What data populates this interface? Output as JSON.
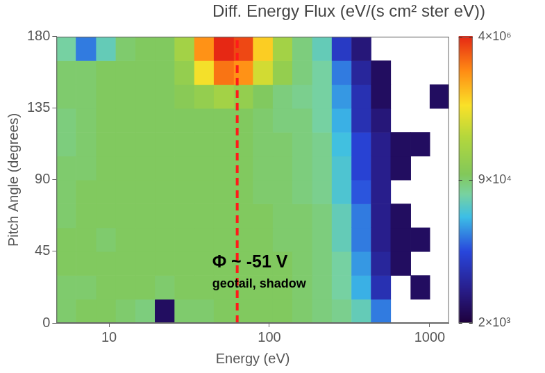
{
  "chart_data": {
    "type": "heatmap",
    "title": "Diff. Energy Flux (eV/(s cm² ster eV))",
    "x_label": "Energy (eV)",
    "y_label": "Pitch Angle (degrees)",
    "log": "x",
    "grid": false,
    "xlim": [
      4.7,
      1320
    ],
    "xticks": [
      10,
      100,
      1000
    ],
    "ylim": [
      0,
      180
    ],
    "yticks": [
      0,
      45,
      90,
      135,
      180
    ],
    "x_edges": [
      4.7,
      6.2,
      8.3,
      11,
      14.6,
      19.3,
      25.6,
      34,
      45,
      60,
      79,
      105,
      139,
      185,
      245,
      325,
      430,
      570,
      760,
      1000,
      1320
    ],
    "y_edges": [
      0,
      15,
      30,
      45,
      60,
      75,
      90,
      105,
      120,
      135,
      150,
      165,
      180
    ],
    "cells": [
      [
        90000,
        100000,
        100000,
        90000,
        80000,
        3000,
        90000,
        90000,
        100000,
        100000,
        100000,
        100000,
        90000,
        80000,
        70000,
        50000,
        20000,
        null,
        null,
        null
      ],
      [
        90000,
        90000,
        100000,
        100000,
        100000,
        90000,
        100000,
        100000,
        100000,
        100000,
        100000,
        100000,
        90000,
        80000,
        60000,
        30000,
        8000,
        null,
        3000,
        null
      ],
      [
        100000,
        100000,
        100000,
        100000,
        100000,
        100000,
        100000,
        100000,
        100000,
        100000,
        100000,
        100000,
        90000,
        80000,
        60000,
        25000,
        6000,
        3000,
        null,
        null
      ],
      [
        100000,
        100000,
        90000,
        100000,
        100000,
        100000,
        100000,
        100000,
        100000,
        100000,
        100000,
        90000,
        90000,
        80000,
        50000,
        20000,
        5000,
        3000,
        3000,
        null
      ],
      [
        90000,
        100000,
        100000,
        100000,
        100000,
        100000,
        100000,
        100000,
        100000,
        100000,
        100000,
        90000,
        90000,
        80000,
        50000,
        20000,
        5000,
        3000,
        null,
        null
      ],
      [
        90000,
        100000,
        100000,
        100000,
        100000,
        100000,
        100000,
        100000,
        100000,
        100000,
        90000,
        90000,
        80000,
        70000,
        40000,
        15000,
        5000,
        null,
        null,
        null
      ],
      [
        90000,
        90000,
        100000,
        100000,
        100000,
        100000,
        100000,
        100000,
        100000,
        100000,
        90000,
        90000,
        80000,
        70000,
        40000,
        12000,
        5000,
        3000,
        null,
        null
      ],
      [
        80000,
        90000,
        100000,
        100000,
        100000,
        100000,
        100000,
        100000,
        100000,
        100000,
        90000,
        90000,
        80000,
        70000,
        35000,
        12000,
        5000,
        3000,
        3000,
        null
      ],
      [
        80000,
        90000,
        100000,
        100000,
        100000,
        100000,
        100000,
        100000,
        100000,
        100000,
        90000,
        80000,
        80000,
        60000,
        30000,
        8000,
        4000,
        null,
        null,
        null
      ],
      [
        90000,
        90000,
        100000,
        100000,
        100000,
        100000,
        120000,
        150000,
        200000,
        150000,
        100000,
        80000,
        70000,
        60000,
        25000,
        8000,
        3000,
        null,
        null,
        3000
      ],
      [
        90000,
        90000,
        100000,
        100000,
        100000,
        100000,
        150000,
        600000,
        2000000,
        1500000,
        400000,
        150000,
        80000,
        60000,
        20000,
        6000,
        3000,
        null,
        null,
        null
      ],
      [
        60000,
        20000,
        50000,
        90000,
        100000,
        100000,
        200000,
        1500000,
        4000000,
        3000000,
        800000,
        200000,
        80000,
        50000,
        10000,
        4000,
        null,
        null,
        null,
        null
      ]
    ],
    "colorbar": {
      "log": true,
      "lim": [
        2000,
        4000000
      ],
      "ticks": [
        {
          "value": 2000,
          "label": "2×10³"
        },
        {
          "value": 90000,
          "label": "9×10⁴"
        },
        {
          "value": 4000000,
          "label": "4×10⁶"
        }
      ]
    },
    "marker_line": {
      "x": 63,
      "color": "#ff1a1a",
      "line_style": "dashed"
    },
    "annotations": [
      "Φ ~ -51 V",
      "geotail, shadow"
    ]
  }
}
